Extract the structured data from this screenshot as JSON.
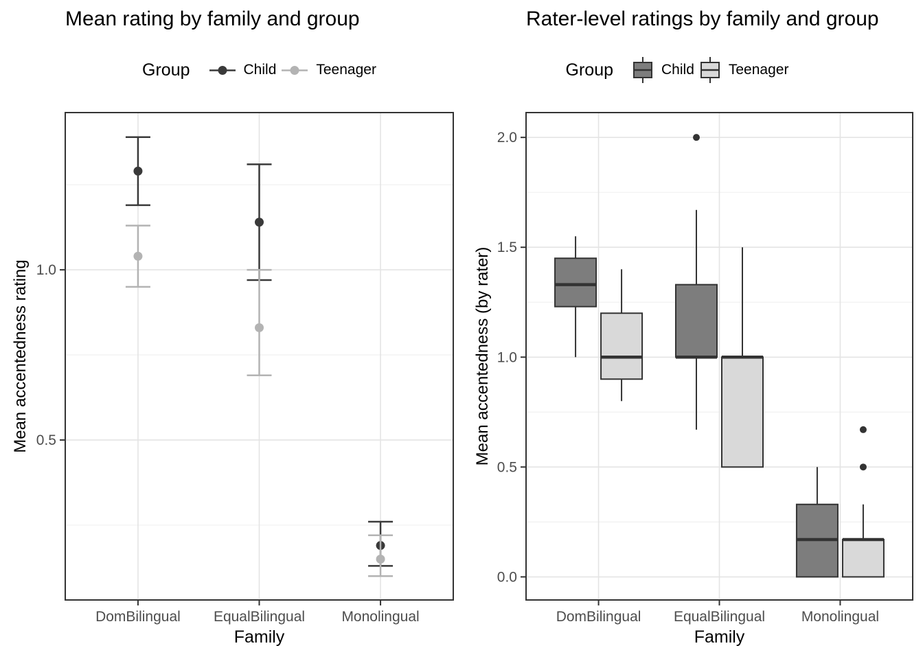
{
  "palette": {
    "panel_border": "#333333",
    "grid_major": "#e4e4e4",
    "grid_minor": "#f0f0f0",
    "axis_text": "#4d4d4d",
    "tick_mark": "#333333",
    "outlier": "#333333"
  },
  "chart_data": [
    {
      "id": "mean-rating-chart",
      "type": "pointrange",
      "title": "Mean rating by family and group",
      "legend_title": "Group",
      "xlabel": "Family",
      "ylabel": "Mean accentedness rating",
      "categories": [
        "DomBilingual",
        "EqualBilingual",
        "Monolingual"
      ],
      "yticks": [
        0.5,
        1.0
      ],
      "ytick_labels": [
        "0.5",
        "1.0"
      ],
      "yticks_minor": [
        0.25,
        0.75,
        1.25
      ],
      "ylim": [
        0.03,
        1.462
      ],
      "grid": true,
      "legend_position": "top",
      "series": [
        {
          "name": "Child",
          "color": "#3a3a3a",
          "mean": [
            1.29,
            1.14,
            0.19
          ],
          "lower": [
            1.19,
            0.97,
            0.13
          ],
          "upper": [
            1.39,
            1.31,
            0.26
          ]
        },
        {
          "name": "Teenager",
          "color": "#b3b3b3",
          "mean": [
            1.04,
            0.83,
            0.15
          ],
          "lower": [
            0.95,
            0.69,
            0.1
          ],
          "upper": [
            1.13,
            1.0,
            0.22
          ]
        }
      ]
    },
    {
      "id": "rater-level-chart",
      "type": "boxplot",
      "title": "Rater-level ratings by family and group",
      "legend_title": "Group",
      "xlabel": "Family",
      "ylabel": "Mean accentedness (by rater)",
      "categories": [
        "DomBilingual",
        "EqualBilingual",
        "Monolingual"
      ],
      "yticks": [
        0.0,
        0.5,
        1.0,
        1.5,
        2.0
      ],
      "ytick_labels": [
        "0.0",
        "0.5",
        "1.0",
        "1.5",
        "2.0"
      ],
      "yticks_minor": [
        0.25,
        0.75,
        1.25,
        1.75
      ],
      "ylim": [
        -0.105,
        2.113
      ],
      "grid": true,
      "legend_position": "top",
      "series": [
        {
          "name": "Child",
          "fill": "#7d7d7d",
          "boxes": [
            {
              "whisker_lo": 1.0,
              "q1": 1.23,
              "median": 1.33,
              "q3": 1.45,
              "whisker_hi": 1.55,
              "outliers": []
            },
            {
              "whisker_lo": 0.67,
              "q1": 1.0,
              "median": 1.0,
              "q3": 1.33,
              "whisker_hi": 1.67,
              "outliers": [
                2.0
              ]
            },
            {
              "whisker_lo": 0.0,
              "q1": 0.0,
              "median": 0.17,
              "q3": 0.33,
              "whisker_hi": 0.5,
              "outliers": []
            }
          ]
        },
        {
          "name": "Teenager",
          "fill": "#d9d9d9",
          "boxes": [
            {
              "whisker_lo": 0.8,
              "q1": 0.9,
              "median": 1.0,
              "q3": 1.2,
              "whisker_hi": 1.4,
              "outliers": []
            },
            {
              "whisker_lo": 0.5,
              "q1": 0.5,
              "median": 1.0,
              "q3": 1.0,
              "whisker_hi": 1.5,
              "outliers": []
            },
            {
              "whisker_lo": 0.0,
              "q1": 0.0,
              "median": 0.17,
              "q3": 0.17,
              "whisker_hi": 0.33,
              "outliers": [
                0.5,
                0.67
              ]
            }
          ]
        }
      ]
    }
  ]
}
